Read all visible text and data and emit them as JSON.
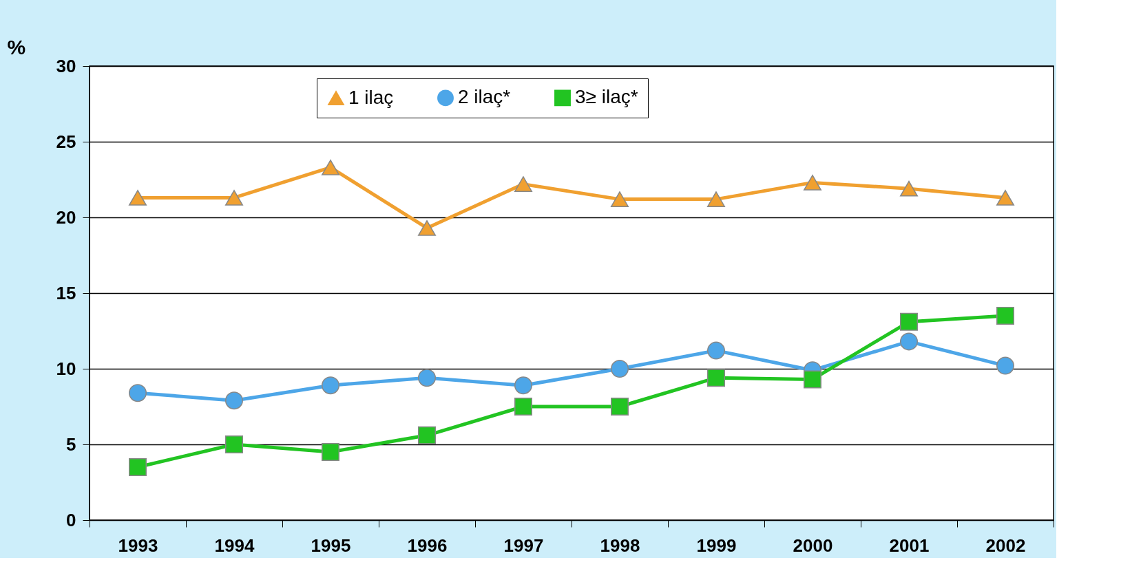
{
  "chart_data": {
    "type": "line",
    "ylabel": "%",
    "categories": [
      "1993",
      "1994",
      "1995",
      "1996",
      "1997",
      "1998",
      "1999",
      "2000",
      "2001",
      "2002"
    ],
    "ylim": [
      0,
      30
    ],
    "yticks": [
      0,
      5,
      10,
      15,
      20,
      25,
      30
    ],
    "grid": "y",
    "legend": "top",
    "line_style": "solid",
    "series": [
      {
        "name": "1 ilaç",
        "color": "#f0a030",
        "marker": "triangle",
        "values": [
          21.3,
          21.3,
          23.3,
          19.3,
          22.2,
          21.2,
          21.2,
          22.3,
          21.9,
          21.3
        ]
      },
      {
        "name": "2 ilaç*",
        "color": "#4da6e8",
        "marker": "circle",
        "values": [
          8.4,
          7.9,
          8.9,
          9.4,
          8.9,
          10.0,
          11.2,
          9.9,
          11.8,
          10.2
        ]
      },
      {
        "name": "3≥ ilaç*",
        "color": "#22c422",
        "marker": "square",
        "values": [
          3.5,
          5.0,
          4.5,
          5.6,
          7.5,
          7.5,
          9.4,
          9.3,
          13.1,
          13.5
        ]
      }
    ]
  }
}
